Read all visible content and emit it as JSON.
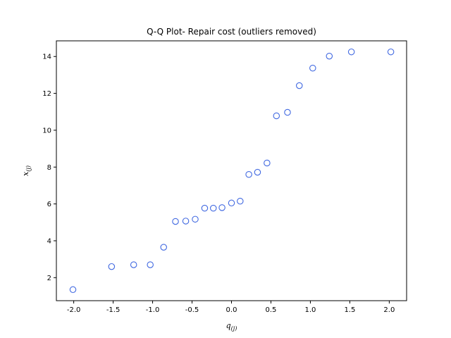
{
  "chart_data": {
    "type": "scatter",
    "title": "Q-Q Plot- Repair cost (outliers removed)",
    "xlabel": {
      "base": "q",
      "sub": "(j)"
    },
    "ylabel": {
      "base": "x",
      "sub": "(j)"
    },
    "xlim": [
      -2.22,
      2.22
    ],
    "ylim": [
      0.75,
      14.85
    ],
    "xticks": [
      "-2.0",
      "-1.5",
      "-1.0",
      "-0.5",
      "0.0",
      "0.5",
      "1.0",
      "1.5",
      "2.0"
    ],
    "xtick_values": [
      -2.0,
      -1.5,
      -1.0,
      -0.5,
      0.0,
      0.5,
      1.0,
      1.5,
      2.0
    ],
    "yticks": [
      "2",
      "4",
      "6",
      "8",
      "10",
      "12",
      "14"
    ],
    "ytick_values": [
      2,
      4,
      6,
      8,
      10,
      12,
      14
    ],
    "grid": false,
    "marker_color": "#4169e1",
    "x": [
      -2.01,
      -1.52,
      -1.24,
      -1.03,
      -0.86,
      -0.71,
      -0.58,
      -0.46,
      -0.34,
      -0.23,
      -0.12,
      0.0,
      0.11,
      0.22,
      0.33,
      0.45,
      0.57,
      0.71,
      0.86,
      1.03,
      1.24,
      1.52,
      2.02
    ],
    "y": [
      1.35,
      2.6,
      2.7,
      2.7,
      3.65,
      5.05,
      5.07,
      5.17,
      5.77,
      5.77,
      5.8,
      6.05,
      6.15,
      7.6,
      7.72,
      8.22,
      10.78,
      10.97,
      12.42,
      13.37,
      14.02,
      14.25,
      14.25
    ]
  }
}
